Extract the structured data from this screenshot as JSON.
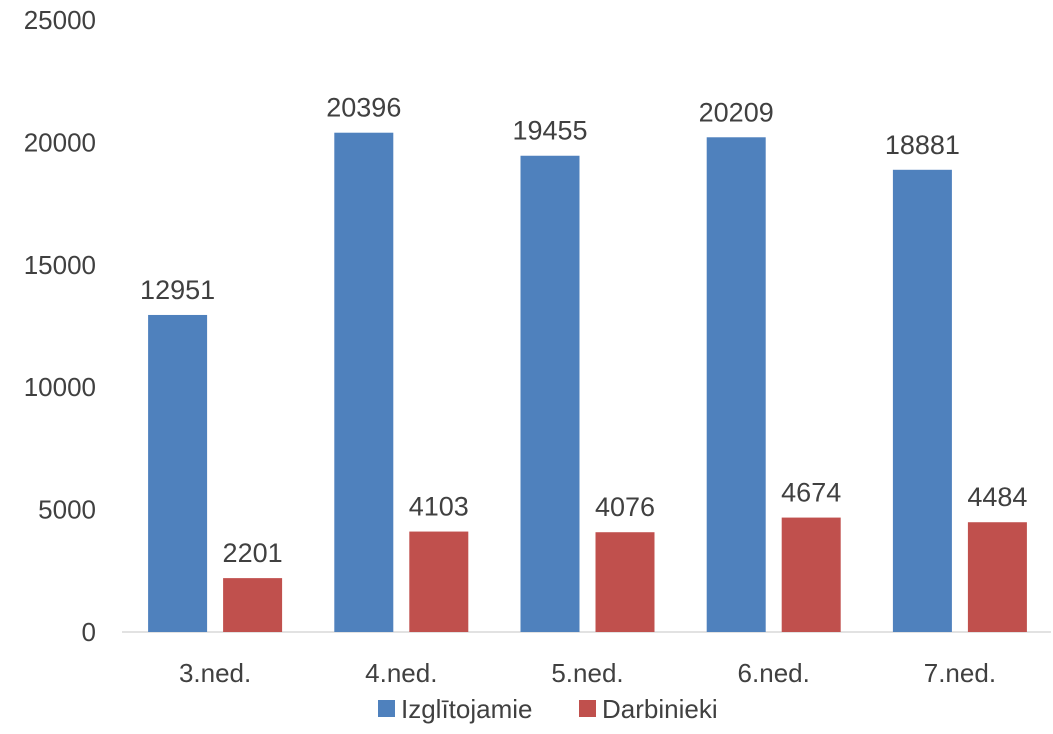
{
  "chart_data": {
    "type": "bar",
    "categories": [
      "3.ned.",
      "4.ned.",
      "5.ned.",
      "6.ned.",
      "7.ned."
    ],
    "series": [
      {
        "name": "Izglītojamie",
        "color": "#4f81bd",
        "values": [
          12951,
          20396,
          19455,
          20209,
          18881
        ]
      },
      {
        "name": "Darbinieki",
        "color": "#c0504d",
        "values": [
          2201,
          4103,
          4076,
          4674,
          4484
        ]
      }
    ],
    "ylim": [
      0,
      25000
    ],
    "yticks": [
      "0",
      "5000",
      "10000",
      "15000",
      "20000",
      "25000"
    ],
    "ytick_values": [
      0,
      5000,
      10000,
      15000,
      20000,
      25000
    ],
    "grid": false,
    "legend": "bottom",
    "data_labels": true
  }
}
